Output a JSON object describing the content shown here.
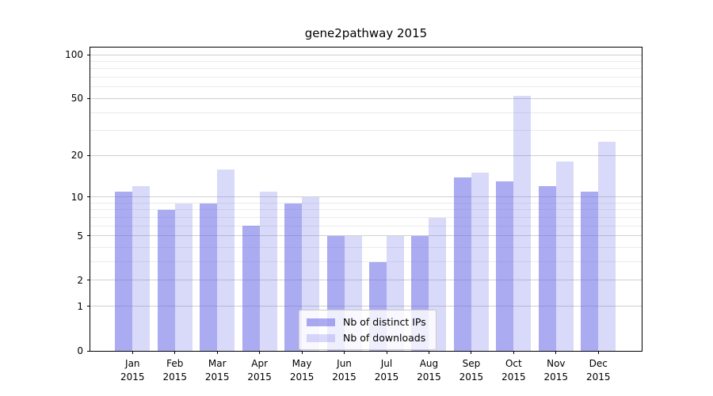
{
  "title": "gene2pathway 2015",
  "chart_data": {
    "type": "bar",
    "title": "gene2pathway 2015",
    "year": "2015",
    "categories": [
      "Jan",
      "Feb",
      "Mar",
      "Apr",
      "May",
      "Jun",
      "Jul",
      "Aug",
      "Sep",
      "Oct",
      "Nov",
      "Dec"
    ],
    "series": [
      {
        "name": "Nb of distinct IPs",
        "color": "rgba(102,102,230,0.55)",
        "values": [
          11,
          8,
          9,
          6,
          9,
          5,
          3,
          5,
          14,
          13,
          12,
          11
        ]
      },
      {
        "name": "Nb of downloads",
        "color": "rgba(102,102,230,0.25)",
        "values": [
          12,
          9,
          16,
          11,
          10,
          5,
          5,
          7,
          15,
          52,
          18,
          25
        ]
      }
    ],
    "xlabel": "",
    "ylabel": "",
    "yscale": "log1p",
    "ylim": [
      0,
      112
    ],
    "yticks": [
      0,
      1,
      2,
      5,
      10,
      20,
      50,
      100
    ],
    "yticks_minor": [
      3,
      4,
      6,
      7,
      8,
      9,
      30,
      40,
      60,
      70,
      80,
      90
    ],
    "grid": true,
    "legend_position": "inside bottom-center"
  },
  "colors": {
    "bar_ips": "rgba(102,102,230,0.55)",
    "bar_downloads": "rgba(102,102,230,0.25)",
    "grid_major": "#d0d0d0",
    "grid_minor": "#ebebeb",
    "frame": "#000000",
    "background": "#ffffff"
  }
}
